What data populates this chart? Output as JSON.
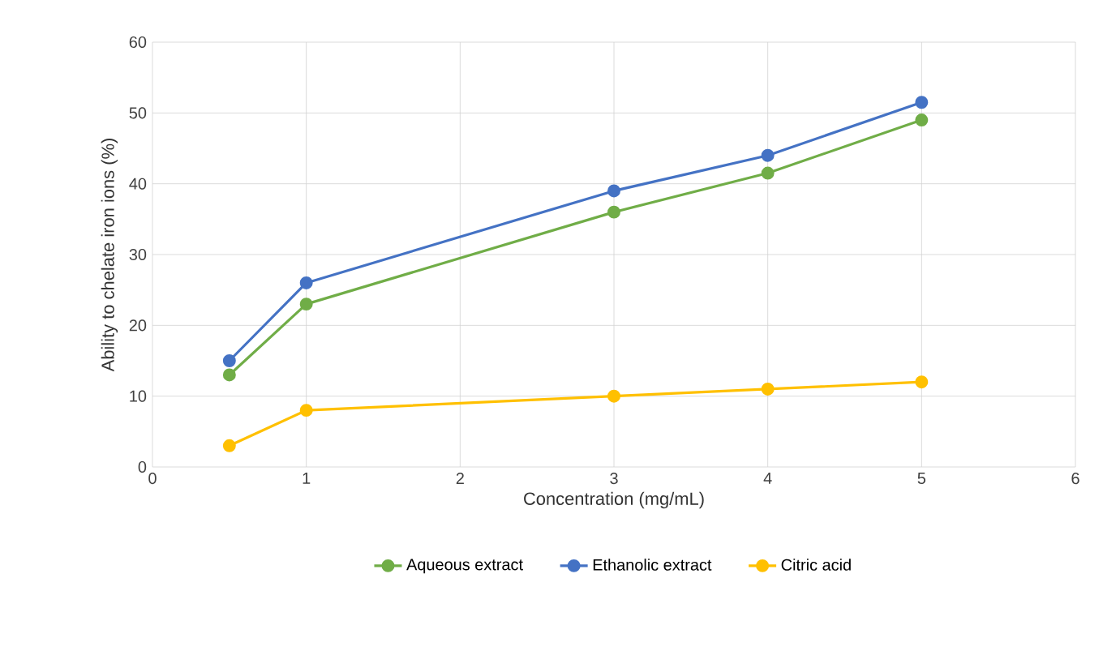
{
  "chart_data": {
    "type": "line",
    "xlabel": "Concentration (mg/mL)",
    "ylabel": "Ability to chelate iron ions (%)",
    "x": [
      0.5,
      1,
      3,
      4,
      5
    ],
    "series": [
      {
        "name": "Aqueous extract",
        "color": "#70ad47",
        "values": [
          13,
          23,
          36,
          41.5,
          49
        ]
      },
      {
        "name": "Ethanolic extract",
        "color": "#4472c4",
        "values": [
          15,
          26,
          39,
          44,
          51.5
        ]
      },
      {
        "name": "Citric acid",
        "color": "#ffc000",
        "values": [
          3,
          8,
          10,
          11,
          12
        ]
      }
    ],
    "xlim": [
      0,
      6
    ],
    "ylim": [
      0,
      60
    ],
    "xticks": [
      0,
      1,
      2,
      3,
      4,
      5,
      6
    ],
    "yticks": [
      0,
      10,
      20,
      30,
      40,
      50,
      60
    ],
    "grid": true,
    "legend": "bottom",
    "marker": "circle",
    "line_style": "solid"
  }
}
